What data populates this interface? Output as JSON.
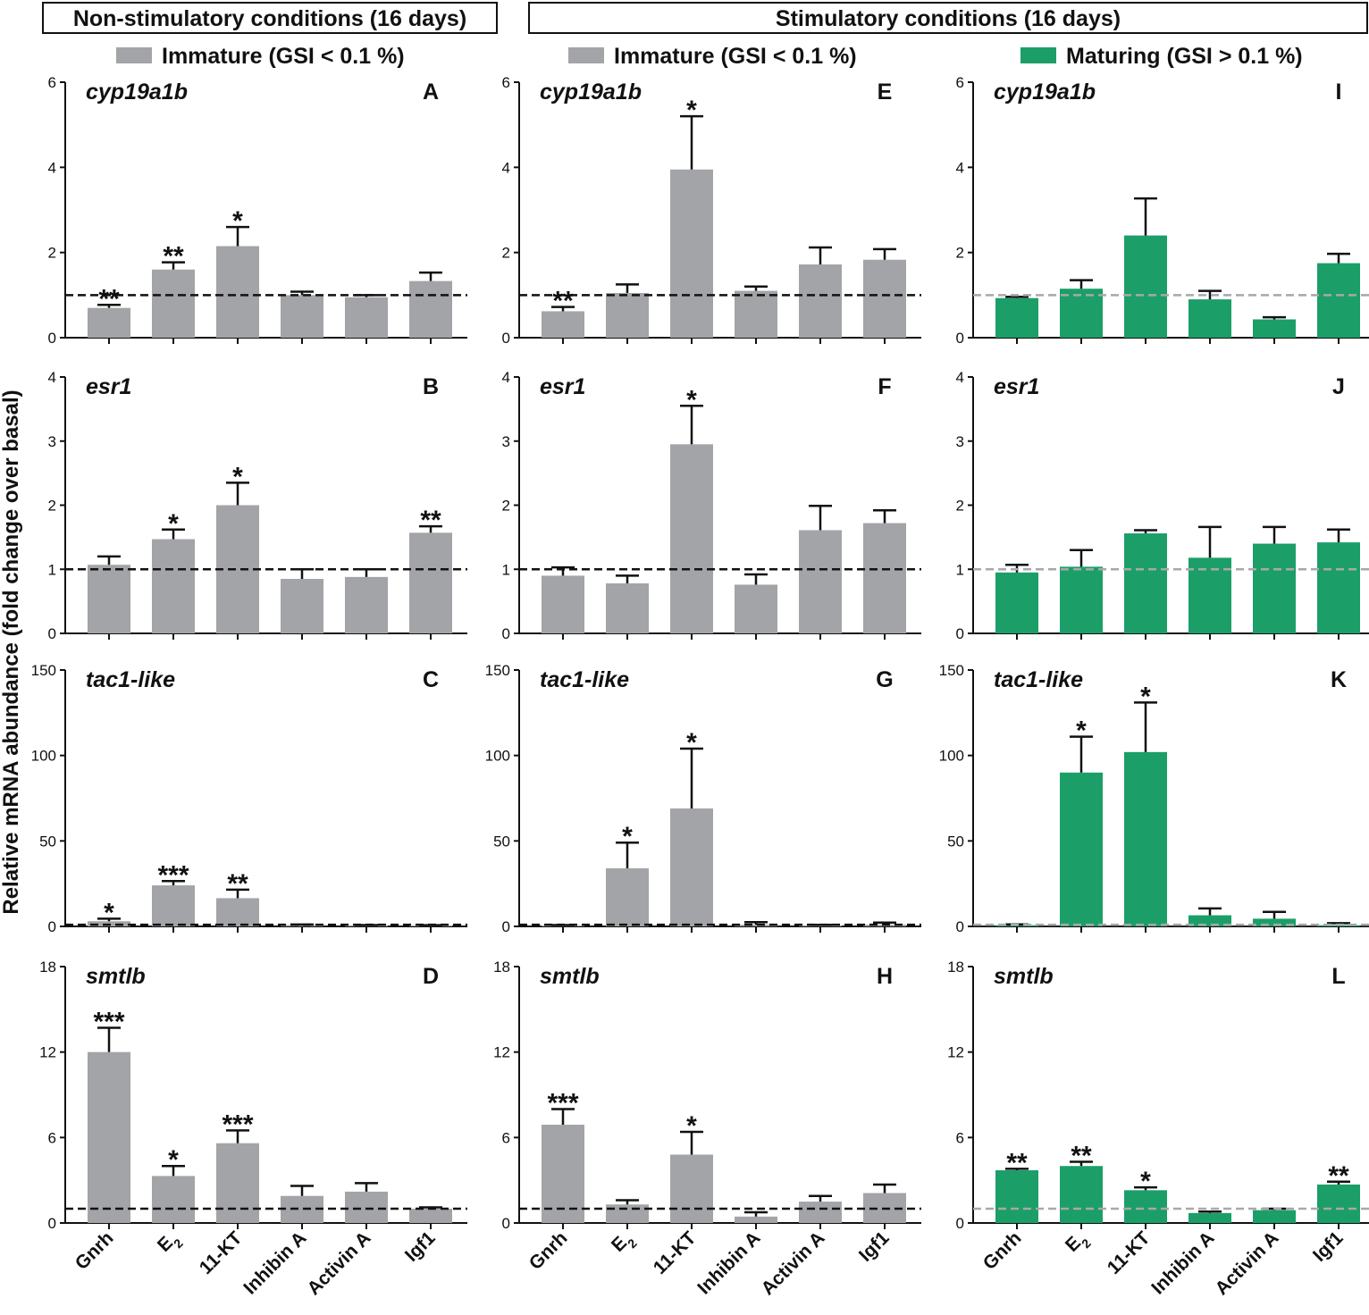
{
  "figure": {
    "headers": {
      "left": "Non-stimulatory conditions (16 days)",
      "right": "Stimulatory conditions (16 days)"
    },
    "legend": {
      "immature_left": "Immature (GSI < 0.1 %)",
      "immature_mid": "Immature (GSI < 0.1 %)",
      "maturing": "Maturing (GSI > 0.1 %)"
    },
    "y_axis_label": "Relative mRNA abundance (fold change over basal)",
    "colors": {
      "immature": "#a3a4a7",
      "maturing": "#1b9e68",
      "baseline_immature": "#111111",
      "baseline_maturing": "#a8a8a8",
      "axis": "#111111"
    }
  },
  "chart_data": [
    {
      "panel": "A",
      "gene": "cyp19a1b",
      "type": "bar",
      "series": "immature",
      "baseline": 1,
      "ylim": [
        0,
        6
      ],
      "yticks": [
        "0",
        "2",
        "4",
        "6"
      ],
      "categories": [
        "Gnrh",
        "E2",
        "11-KT",
        "Inhibin A",
        "Activin A",
        "Igf1"
      ],
      "values": [
        0.7,
        1.6,
        2.15,
        1.0,
        0.95,
        1.33
      ],
      "errors": [
        0.07,
        0.17,
        0.45,
        0.08,
        0.05,
        0.2
      ],
      "significance": [
        "**",
        "**",
        "*",
        "",
        "",
        ""
      ]
    },
    {
      "panel": "B",
      "gene": "esr1",
      "type": "bar",
      "series": "immature",
      "baseline": 1,
      "ylim": [
        0,
        4
      ],
      "yticks": [
        "0",
        "1",
        "2",
        "3",
        "4"
      ],
      "categories": [
        "Gnrh",
        "E2",
        "11-KT",
        "Inhibin A",
        "Activin A",
        "Igf1"
      ],
      "values": [
        1.07,
        1.47,
        2.0,
        0.85,
        0.88,
        1.57
      ],
      "errors": [
        0.13,
        0.15,
        0.35,
        0.15,
        0.12,
        0.1
      ],
      "significance": [
        "",
        "*",
        "*",
        "",
        "",
        "**"
      ]
    },
    {
      "panel": "C",
      "gene": "tac1-like",
      "type": "bar",
      "series": "immature",
      "baseline": 1,
      "ylim": [
        0,
        150
      ],
      "yticks": [
        "0",
        "50",
        "100",
        "150"
      ],
      "categories": [
        "Gnrh",
        "E2",
        "11-KT",
        "Inhibin A",
        "Activin A",
        "Igf1"
      ],
      "values": [
        3,
        24,
        16.5,
        0.8,
        0.6,
        0.5
      ],
      "errors": [
        1.5,
        2.5,
        5,
        0.3,
        0.2,
        0.2
      ],
      "significance": [
        "*",
        "***",
        "**",
        "",
        "",
        ""
      ]
    },
    {
      "panel": "D",
      "gene": "smtlb",
      "type": "bar",
      "series": "immature",
      "baseline": 1,
      "ylim": [
        0,
        18
      ],
      "yticks": [
        "0",
        "6",
        "12",
        "18"
      ],
      "categories": [
        "Gnrh",
        "E2",
        "11-KT",
        "Inhibin A",
        "Activin A",
        "Igf1"
      ],
      "values": [
        12.0,
        3.3,
        5.6,
        1.9,
        2.2,
        1.0
      ],
      "errors": [
        1.7,
        0.7,
        0.9,
        0.7,
        0.6,
        0.1
      ],
      "significance": [
        "***",
        "*",
        "***",
        "",
        "",
        ""
      ]
    },
    {
      "panel": "E",
      "gene": "cyp19a1b",
      "type": "bar",
      "series": "immature",
      "baseline": 1,
      "ylim": [
        0,
        6
      ],
      "yticks": [
        "0",
        "2",
        "4",
        "6"
      ],
      "categories": [
        "Gnrh",
        "E2",
        "11-KT",
        "Inhibin A",
        "Activin A",
        "Igf1"
      ],
      "values": [
        0.62,
        1.05,
        3.95,
        1.1,
        1.72,
        1.83
      ],
      "errors": [
        0.1,
        0.2,
        1.25,
        0.1,
        0.4,
        0.25
      ],
      "significance": [
        "**",
        "",
        "*",
        "",
        "",
        ""
      ]
    },
    {
      "panel": "F",
      "gene": "esr1",
      "type": "bar",
      "series": "immature",
      "baseline": 1,
      "ylim": [
        0,
        4
      ],
      "yticks": [
        "0",
        "1",
        "2",
        "3",
        "4"
      ],
      "categories": [
        "Gnrh",
        "E2",
        "11-KT",
        "Inhibin A",
        "Activin A",
        "Igf1"
      ],
      "values": [
        0.9,
        0.78,
        2.95,
        0.76,
        1.61,
        1.72
      ],
      "errors": [
        0.13,
        0.12,
        0.6,
        0.16,
        0.38,
        0.2
      ],
      "significance": [
        "",
        "",
        "*",
        "",
        "",
        ""
      ]
    },
    {
      "panel": "G",
      "gene": "tac1-like",
      "type": "bar",
      "series": "immature",
      "baseline": 1,
      "ylim": [
        0,
        150
      ],
      "yticks": [
        "0",
        "50",
        "100",
        "150"
      ],
      "categories": [
        "Gnrh",
        "E2",
        "11-KT",
        "Inhibin A",
        "Activin A",
        "Igf1"
      ],
      "values": [
        0.5,
        34,
        69,
        1.0,
        0.6,
        1.0
      ],
      "errors": [
        0.3,
        15,
        35,
        1.5,
        0.3,
        1.2
      ],
      "significance": [
        "",
        "*",
        "*",
        "",
        "",
        ""
      ]
    },
    {
      "panel": "H",
      "gene": "smtlb",
      "type": "bar",
      "series": "immature",
      "baseline": 1,
      "ylim": [
        0,
        18
      ],
      "yticks": [
        "0",
        "6",
        "12",
        "18"
      ],
      "categories": [
        "Gnrh",
        "E2",
        "11-KT",
        "Inhibin A",
        "Activin A",
        "Igf1"
      ],
      "values": [
        6.9,
        1.3,
        4.8,
        0.45,
        1.5,
        2.1
      ],
      "errors": [
        1.1,
        0.3,
        1.6,
        0.3,
        0.4,
        0.6
      ],
      "significance": [
        "***",
        "",
        "*",
        "",
        "",
        ""
      ]
    },
    {
      "panel": "I",
      "gene": "cyp19a1b",
      "type": "bar",
      "series": "maturing",
      "baseline": 1,
      "ylim": [
        0,
        6
      ],
      "yticks": [
        "0",
        "2",
        "4",
        "6"
      ],
      "categories": [
        "Gnrh",
        "E2",
        "11-KT",
        "Inhibin A",
        "Activin A",
        "Igf1"
      ],
      "values": [
        0.93,
        1.15,
        2.4,
        0.9,
        0.43,
        1.75
      ],
      "errors": [
        0.03,
        0.2,
        0.87,
        0.2,
        0.05,
        0.22
      ],
      "significance": [
        "",
        "",
        "",
        "",
        "",
        ""
      ]
    },
    {
      "panel": "J",
      "gene": "esr1",
      "type": "bar",
      "series": "maturing",
      "baseline": 1,
      "ylim": [
        0,
        4
      ],
      "yticks": [
        "0",
        "1",
        "2",
        "3",
        "4"
      ],
      "categories": [
        "Gnrh",
        "E2",
        "11-KT",
        "Inhibin A",
        "Activin A",
        "Igf1"
      ],
      "values": [
        0.95,
        1.04,
        1.56,
        1.18,
        1.4,
        1.42
      ],
      "errors": [
        0.12,
        0.26,
        0.05,
        0.48,
        0.26,
        0.2
      ],
      "significance": [
        "",
        "",
        "",
        "",
        "",
        ""
      ]
    },
    {
      "panel": "K",
      "gene": "tac1-like",
      "type": "bar",
      "series": "maturing",
      "baseline": 1,
      "ylim": [
        0,
        150
      ],
      "yticks": [
        "0",
        "50",
        "100",
        "150"
      ],
      "categories": [
        "Gnrh",
        "E2",
        "11-KT",
        "Inhibin A",
        "Activin A",
        "Igf1"
      ],
      "values": [
        0.7,
        90,
        102,
        6.5,
        4.5,
        0.7
      ],
      "errors": [
        0.5,
        21,
        29,
        4,
        4,
        1.2
      ],
      "significance": [
        "",
        "*",
        "*",
        "",
        "",
        ""
      ]
    },
    {
      "panel": "L",
      "gene": "smtlb",
      "type": "bar",
      "series": "maturing",
      "baseline": 1,
      "ylim": [
        0,
        18
      ],
      "yticks": [
        "0",
        "6",
        "12",
        "18"
      ],
      "categories": [
        "Gnrh",
        "E2",
        "11-KT",
        "Inhibin A",
        "Activin A",
        "Igf1"
      ],
      "values": [
        3.7,
        4.0,
        2.3,
        0.7,
        0.9,
        2.7
      ],
      "errors": [
        0.1,
        0.3,
        0.2,
        0.1,
        0.1,
        0.2
      ],
      "significance": [
        "**",
        "**",
        "*",
        "",
        "",
        "**"
      ]
    }
  ]
}
